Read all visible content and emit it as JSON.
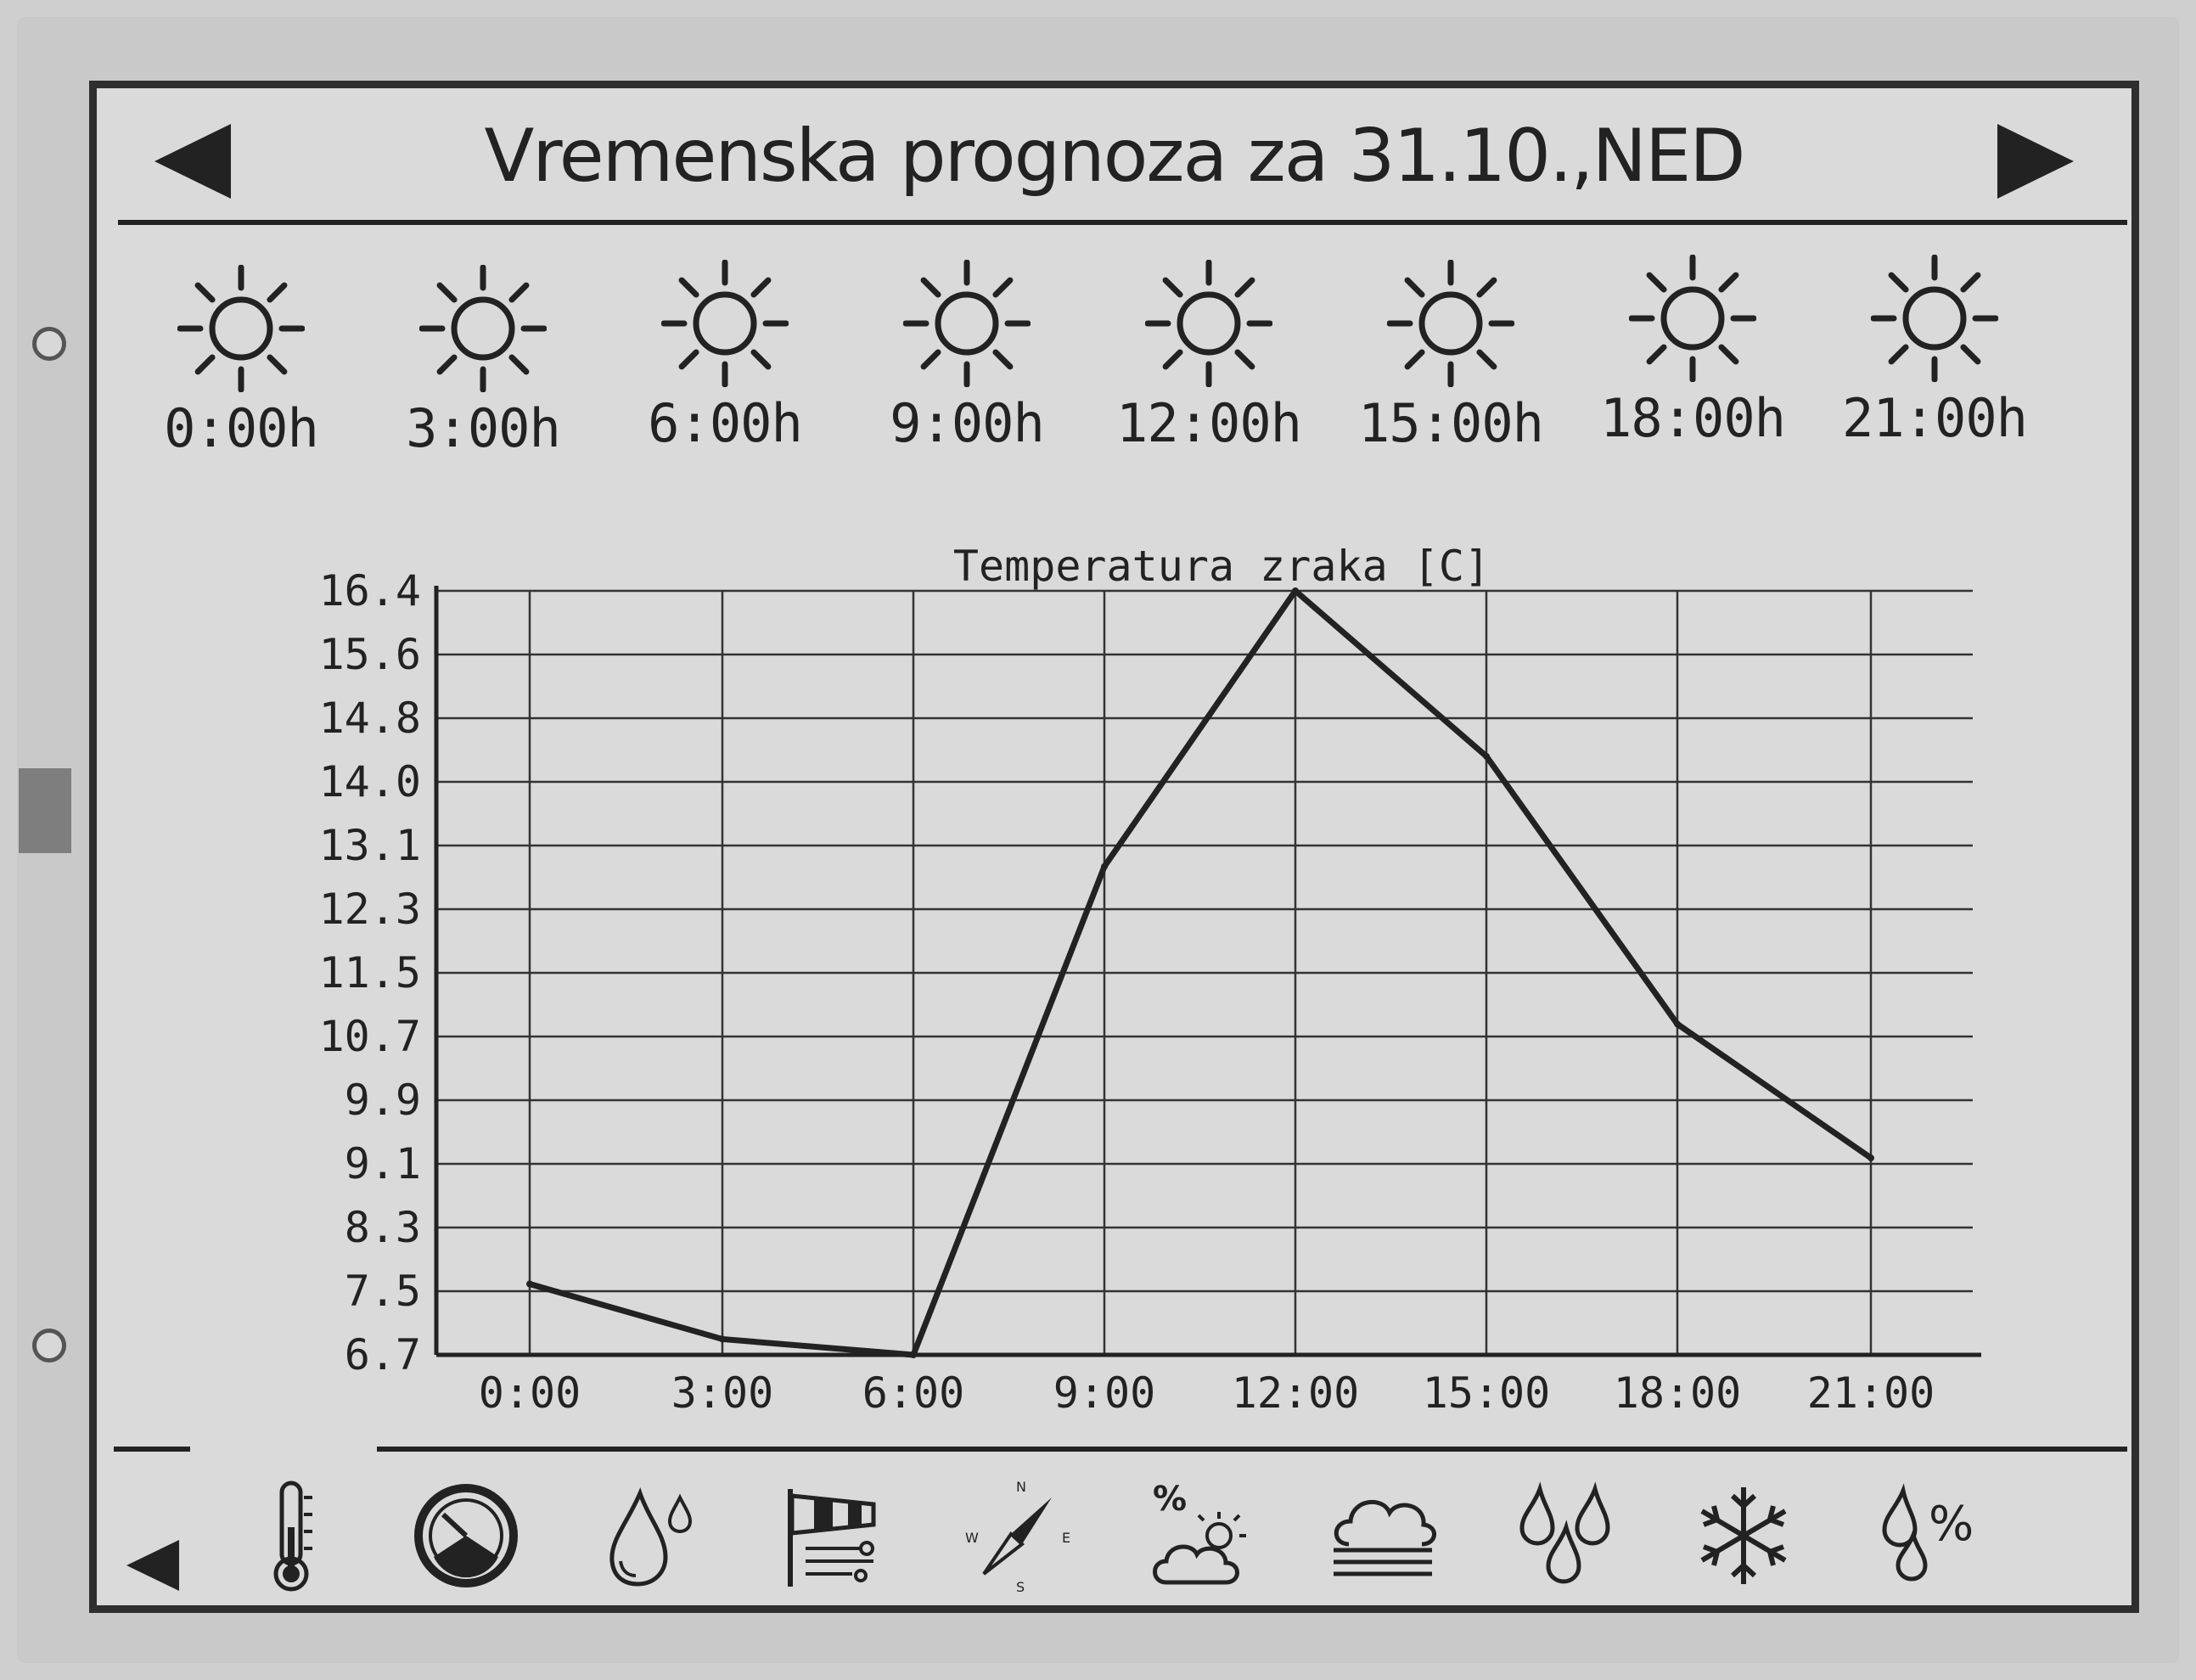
{
  "header": {
    "title": "Vremenska prognoza za 31.10.,NED"
  },
  "hourly": [
    {
      "time": "0:00h",
      "icon": "sun-icon"
    },
    {
      "time": "3:00h",
      "icon": "sun-icon"
    },
    {
      "time": "6:00h",
      "icon": "sun-icon"
    },
    {
      "time": "9:00h",
      "icon": "sun-icon"
    },
    {
      "time": "12:00h",
      "icon": "sun-icon"
    },
    {
      "time": "15:00h",
      "icon": "sun-icon"
    },
    {
      "time": "18:00h",
      "icon": "sun-icon"
    },
    {
      "time": "21:00h",
      "icon": "sun-icon"
    }
  ],
  "chart_data": {
    "type": "line",
    "title": "Temperatura zraka [C]",
    "categories": [
      "0:00",
      "3:00",
      "6:00",
      "9:00",
      "12:00",
      "15:00",
      "18:00",
      "21:00"
    ],
    "series": [
      {
        "values": [
          7.6,
          6.9,
          6.7,
          12.9,
          16.4,
          14.3,
          10.9,
          9.2
        ]
      }
    ],
    "yticks": [
      "16.4",
      "15.6",
      "14.8",
      "14.0",
      "13.1",
      "12.3",
      "11.5",
      "10.7",
      "9.9",
      "9.1",
      "8.3",
      "7.5",
      "6.7"
    ],
    "ylim": [
      6.7,
      16.4
    ],
    "grid": true,
    "legend": "none"
  },
  "toolbar": {
    "icons": [
      "thermometer-icon",
      "pressure-gauge-icon",
      "humidity-drop-icon",
      "wind-sock-icon",
      "wind-compass-icon",
      "cloud-cover-icon",
      "fog-icon",
      "rain-icon",
      "snow-icon",
      "precipitation-probability-icon"
    ],
    "compass": {
      "n": "N",
      "e": "E",
      "s": "S",
      "w": "W"
    },
    "cloud_percent": "%",
    "precip_percent": "%"
  }
}
